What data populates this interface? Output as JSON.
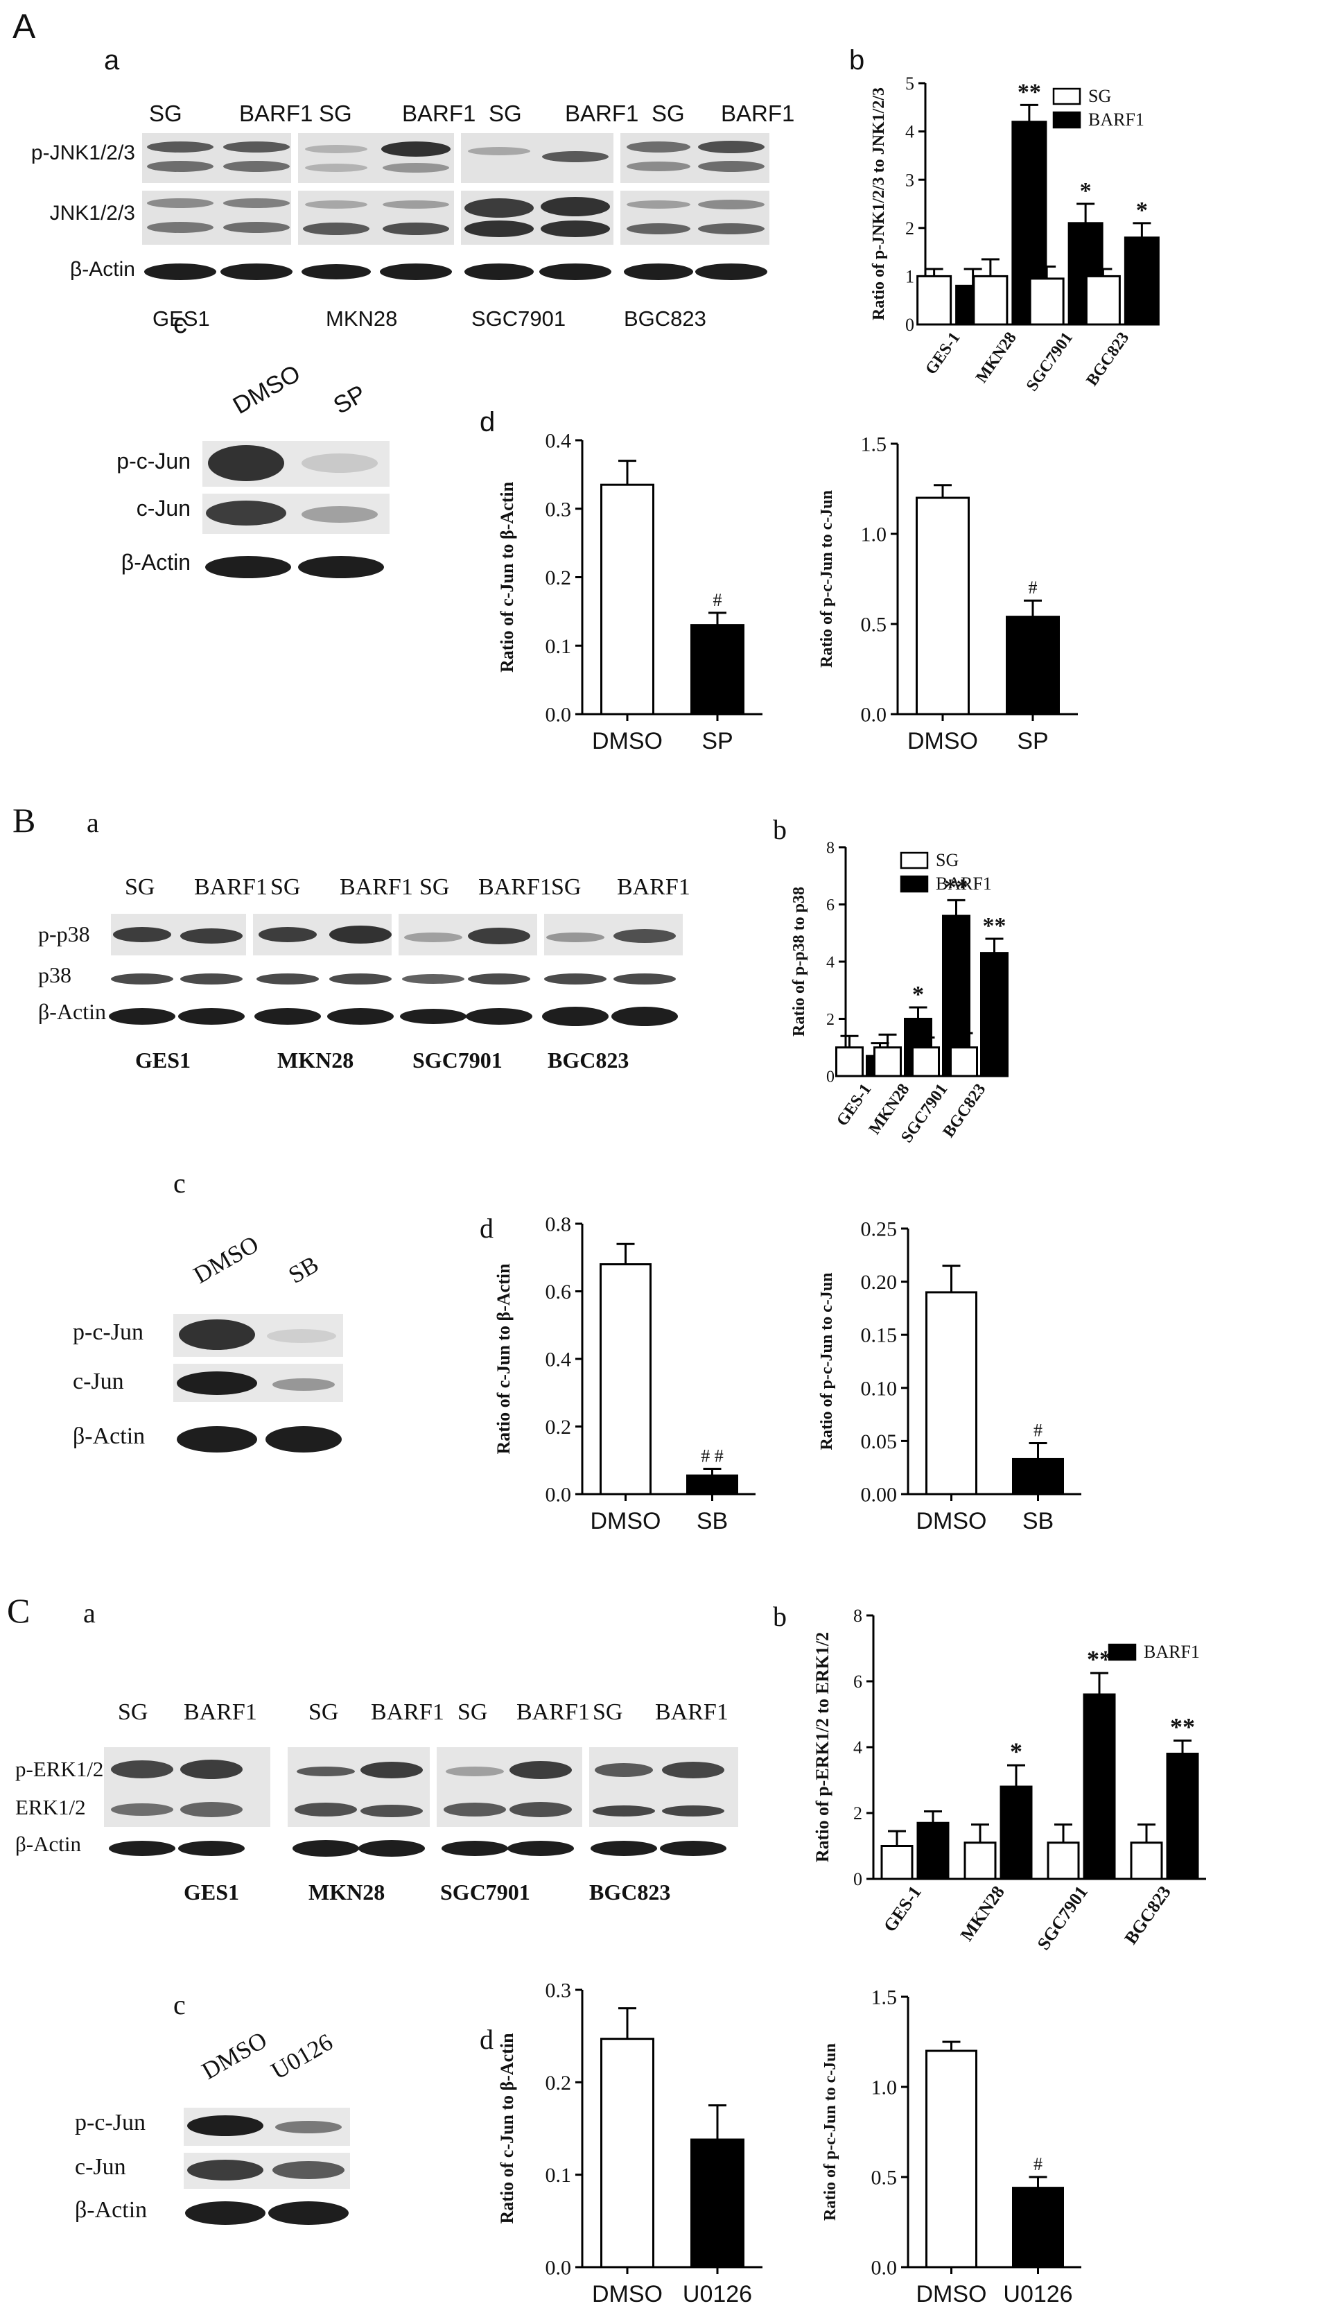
{
  "panels": {
    "A": {
      "letter": "A",
      "a": {
        "sub": "a",
        "lanes": [
          "SG",
          "BARF1",
          "SG",
          "BARF1",
          "SG",
          "BARF1",
          "SG",
          "BARF1"
        ],
        "rows": [
          "p-JNK1/2/3",
          "JNK1/2/3",
          "β-Actin"
        ],
        "cells": [
          "GES1",
          "MKN28",
          "SGC7901",
          "BGC823"
        ]
      },
      "b": {
        "sub": "b",
        "chart_data": {
          "type": "bar",
          "categories": [
            "GES-1",
            "MKN28",
            "SGC7901",
            "BGC823"
          ],
          "series": [
            {
              "name": "SG",
              "values": [
                1.0,
                1.0,
                0.95,
                1.0
              ],
              "errors": [
                0.15,
                0.35,
                0.25,
                0.15
              ],
              "color": "#ffffff"
            },
            {
              "name": "BARF1",
              "values": [
                0.8,
                4.2,
                2.1,
                1.8
              ],
              "errors": [
                0.35,
                0.35,
                0.4,
                0.3
              ],
              "color": "#000000"
            }
          ],
          "ylabel": "Ratio of p-JNK1/2/3 to JNK1/2/3",
          "ylim": [
            0,
            5
          ],
          "yticks": [
            0,
            1,
            2,
            3,
            4,
            5
          ],
          "annotations": [
            "",
            "**",
            "*",
            "*"
          ],
          "legend": "top-right"
        }
      },
      "c": {
        "sub": "c",
        "lanes": [
          "DMSO",
          "SP"
        ],
        "rows": [
          "p-c-Jun",
          "c-Jun",
          "β-Actin"
        ]
      },
      "d": {
        "sub": "d",
        "charts": [
          {
            "type": "bar",
            "categories": [
              "DMSO",
              "SP"
            ],
            "values": [
              0.335,
              0.13
            ],
            "errors": [
              0.035,
              0.018
            ],
            "colors": [
              "#ffffff",
              "#000000"
            ],
            "ylabel": "Ratio of c-Jun to β-Actin",
            "ylim": [
              0,
              0.4
            ],
            "yticks": [
              "0.0",
              "0.1",
              "0.2",
              "0.3",
              "0.4"
            ],
            "annotations": [
              "",
              "#"
            ]
          },
          {
            "type": "bar",
            "categories": [
              "DMSO",
              "SP"
            ],
            "values": [
              1.2,
              0.54
            ],
            "errors": [
              0.07,
              0.09
            ],
            "colors": [
              "#ffffff",
              "#000000"
            ],
            "ylabel": "Ratio of p-c-Jun to c-Jun",
            "ylim": [
              0,
              1.5
            ],
            "yticks": [
              "0.0",
              "0.5",
              "1.0",
              "1.5"
            ],
            "annotations": [
              "",
              "#"
            ]
          }
        ]
      }
    },
    "B": {
      "letter": "B",
      "a": {
        "sub": "a",
        "lanes": [
          "SG",
          "BARF1",
          "SG",
          "BARF1",
          "SG",
          "BARF1",
          "SG",
          "BARF1"
        ],
        "rows": [
          "p-p38",
          "p38",
          "β-Actin"
        ],
        "cells": [
          "GES1",
          "MKN28",
          "SGC7901",
          "BGC823"
        ]
      },
      "b": {
        "sub": "b",
        "chart_data": {
          "type": "bar",
          "categories": [
            "GES-1",
            "MKN28",
            "SGC7901",
            "BGC823"
          ],
          "series": [
            {
              "name": "SG",
              "values": [
                1.0,
                1.0,
                1.0,
                1.0
              ],
              "errors": [
                0.4,
                0.45,
                0.35,
                0.5
              ],
              "color": "#ffffff"
            },
            {
              "name": "BARF1",
              "values": [
                0.7,
                2.0,
                5.6,
                4.3
              ],
              "errors": [
                0.45,
                0.4,
                0.55,
                0.5
              ],
              "color": "#000000"
            }
          ],
          "ylabel": "Ratio of p-p38 to p38",
          "ylim": [
            0,
            8
          ],
          "yticks": [
            0,
            2,
            4,
            6,
            8
          ],
          "annotations": [
            "",
            "*",
            "**",
            "**"
          ],
          "legend": "top-right"
        }
      },
      "c": {
        "sub": "c",
        "lanes": [
          "DMSO",
          "SB"
        ],
        "rows": [
          "p-c-Jun",
          "c-Jun",
          "β-Actin"
        ]
      },
      "d": {
        "sub": "d",
        "charts": [
          {
            "type": "bar",
            "categories": [
              "DMSO",
              "SB"
            ],
            "values": [
              0.68,
              0.055
            ],
            "errors": [
              0.06,
              0.02
            ],
            "colors": [
              "#ffffff",
              "#000000"
            ],
            "ylabel": "Ratio of c-Jun to β-Actin",
            "ylim": [
              0,
              0.8
            ],
            "yticks": [
              "0.0",
              "0.2",
              "0.4",
              "0.6",
              "0.8"
            ],
            "annotations": [
              "",
              "# #"
            ]
          },
          {
            "type": "bar",
            "categories": [
              "DMSO",
              "SB"
            ],
            "values": [
              0.19,
              0.033
            ],
            "errors": [
              0.025,
              0.015
            ],
            "colors": [
              "#ffffff",
              "#000000"
            ],
            "ylabel": "Ratio of p-c-Jun to c-Jun",
            "ylim": [
              0,
              0.25
            ],
            "yticks": [
              "0.00",
              "0.05",
              "0.10",
              "0.15",
              "0.20",
              "0.25"
            ],
            "annotations": [
              "",
              "#"
            ]
          }
        ]
      }
    },
    "C": {
      "letter": "C",
      "a": {
        "sub": "a",
        "lanes": [
          "SG",
          "BARF1",
          "SG",
          "BARF1",
          "SG",
          "BARF1",
          "SG",
          "BARF1"
        ],
        "rows": [
          "p-ERK1/2",
          "ERK1/2",
          "β-Actin"
        ],
        "cells": [
          "GES1",
          "MKN28",
          "SGC7901",
          "BGC823"
        ]
      },
      "b": {
        "sub": "b",
        "chart_data": {
          "type": "bar",
          "categories": [
            "GES-1",
            "MKN28",
            "SGC7901",
            "BGC823"
          ],
          "series": [
            {
              "name": "",
              "values": [
                1.0,
                1.1,
                1.1,
                1.1
              ],
              "errors": [
                0.45,
                0.55,
                0.55,
                0.55
              ],
              "color": "#ffffff"
            },
            {
              "name": "BARF1",
              "values": [
                1.7,
                2.8,
                5.6,
                3.8
              ],
              "errors": [
                0.35,
                0.65,
                0.65,
                0.4
              ],
              "color": "#000000"
            }
          ],
          "ylabel": "Ratio of p-ERK1/2 to ERK1/2",
          "ylim": [
            0,
            8
          ],
          "yticks": [
            0,
            2,
            4,
            6,
            8
          ],
          "annotations": [
            "",
            "*",
            "**",
            "**"
          ],
          "legend": "top-right"
        }
      },
      "c": {
        "sub": "c",
        "lanes": [
          "DMSO",
          "U0126"
        ],
        "rows": [
          "p-c-Jun",
          "c-Jun",
          "β-Actin"
        ]
      },
      "d": {
        "sub": "d",
        "charts": [
          {
            "type": "bar",
            "categories": [
              "DMSO",
              "U0126"
            ],
            "values": [
              0.247,
              0.138
            ],
            "errors": [
              0.033,
              0.037
            ],
            "colors": [
              "#ffffff",
              "#000000"
            ],
            "ylabel": "Ratio of c-Jun to β-Actin",
            "ylim": [
              0,
              0.3
            ],
            "yticks": [
              "0.0",
              "0.1",
              "0.2",
              "0.3"
            ],
            "annotations": [
              "",
              ""
            ]
          },
          {
            "type": "bar",
            "categories": [
              "DMSO",
              "U0126"
            ],
            "values": [
              1.2,
              0.44
            ],
            "errors": [
              0.05,
              0.06
            ],
            "colors": [
              "#ffffff",
              "#000000"
            ],
            "ylabel": "Ratio of p-c-Jun to c-Jun",
            "ylim": [
              0,
              1.5
            ],
            "yticks": [
              "0.0",
              "0.5",
              "1.0",
              "1.5"
            ],
            "annotations": [
              "",
              "#"
            ]
          }
        ]
      }
    }
  }
}
